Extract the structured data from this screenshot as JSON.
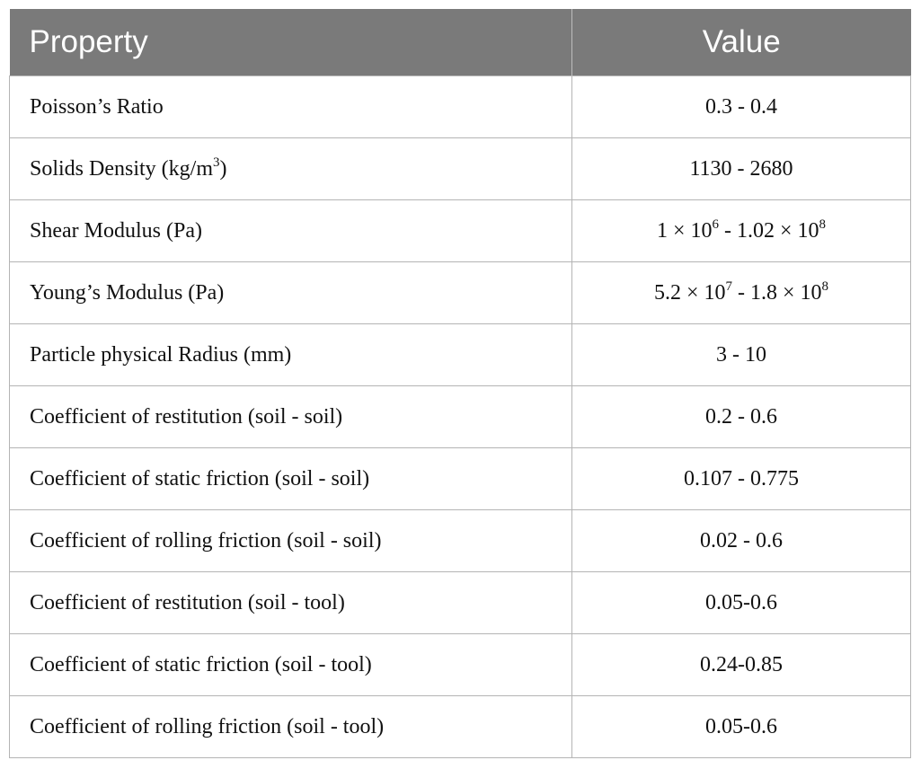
{
  "table": {
    "headers": {
      "property": "Property",
      "value": "Value"
    },
    "rows": [
      {
        "property": "Poisson’s Ratio",
        "value": "0.3 - 0.4"
      },
      {
        "property": "Solids Density (kg/m",
        "property_sup": "3",
        "property_after": ")",
        "value": "1130 - 2680"
      },
      {
        "property": "Shear Modulus (Pa)",
        "value_a": "1 × 10",
        "value_a_sup": "6",
        "value_b": " - 1.02 × 10",
        "value_b_sup": "8"
      },
      {
        "property": "Young’s Modulus (Pa)",
        "value_a": "5.2 × 10",
        "value_a_sup": "7",
        "value_b": " - 1.8 × 10",
        "value_b_sup": "8"
      },
      {
        "property": "Particle physical Radius (mm)",
        "value": "3 - 10"
      },
      {
        "property": "Coefficient of restitution (soil - soil)",
        "value": "0.2 - 0.6"
      },
      {
        "property": "Coefficient of static friction (soil - soil)",
        "value": "0.107 - 0.775"
      },
      {
        "property": "Coefficient of rolling friction (soil - soil)",
        "value": "0.02 - 0.6"
      },
      {
        "property": "Coefficient of restitution (soil - tool)",
        "value": "0.05-0.6"
      },
      {
        "property": "Coefficient of static friction (soil - tool)",
        "value": "0.24-0.85"
      },
      {
        "property": "Coefficient of rolling friction (soil - tool)",
        "value": "0.05-0.6"
      }
    ]
  }
}
